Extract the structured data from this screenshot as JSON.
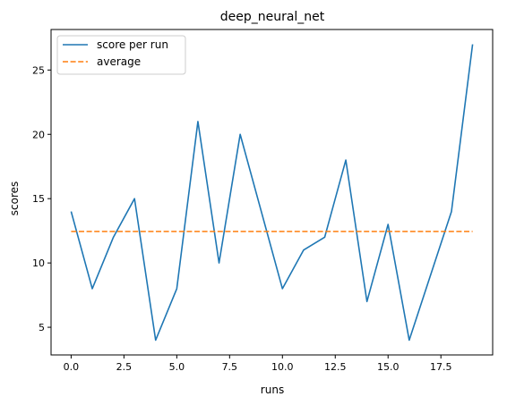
{
  "chart_data": {
    "type": "line",
    "title": "deep_neural_net",
    "xlabel": "runs",
    "ylabel": "scores",
    "xlim": [
      -0.95,
      19.95
    ],
    "ylim": [
      2.85,
      28.15
    ],
    "xticks": [
      0,
      2.5,
      5,
      7.5,
      10,
      12.5,
      15,
      17.5
    ],
    "xtick_labels": [
      "0.0",
      "2.5",
      "5.0",
      "7.5",
      "10.0",
      "12.5",
      "15.0",
      "17.5"
    ],
    "yticks": [
      5,
      10,
      15,
      20,
      25
    ],
    "ytick_labels": [
      "5",
      "10",
      "15",
      "20",
      "25"
    ],
    "grid": false,
    "legend_position": "top-left",
    "x": [
      0,
      1,
      2,
      3,
      4,
      5,
      6,
      7,
      8,
      9,
      10,
      11,
      12,
      13,
      14,
      15,
      16,
      17,
      18,
      19
    ],
    "series": [
      {
        "name": "score per run",
        "color": "#1f77b4",
        "style": "solid",
        "values": [
          14,
          8,
          12,
          15,
          4,
          8,
          21,
          10,
          20,
          14,
          8,
          11,
          12,
          18,
          7,
          13,
          4,
          9,
          14,
          27
        ]
      },
      {
        "name": "average",
        "color": "#ff7f0e",
        "style": "dashed",
        "values": [
          12.45,
          12.45,
          12.45,
          12.45,
          12.45,
          12.45,
          12.45,
          12.45,
          12.45,
          12.45,
          12.45,
          12.45,
          12.45,
          12.45,
          12.45,
          12.45,
          12.45,
          12.45,
          12.45,
          12.45
        ]
      }
    ]
  }
}
